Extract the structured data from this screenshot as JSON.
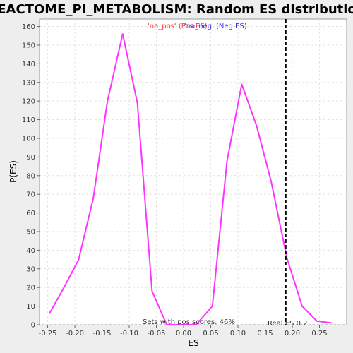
{
  "chart_data": {
    "type": "line",
    "title": "REACTOME_PI_METABOLISM: Random ES distribution",
    "xlabel": "ES",
    "ylabel": "P(ES)",
    "xlim": [
      -0.265,
      0.3
    ],
    "ylim": [
      0,
      164
    ],
    "x_ticks": [
      "-0.25",
      "-0.20",
      "-0.15",
      "-0.10",
      "-0.05",
      "0.00",
      "0.05",
      "0.10",
      "0.15",
      "0.20",
      "0.25"
    ],
    "x_tick_values": [
      -0.25,
      -0.2,
      -0.15,
      -0.1,
      -0.05,
      0.0,
      0.05,
      0.1,
      0.15,
      0.2,
      0.25
    ],
    "y_ticks": [
      "0",
      "10",
      "20",
      "30",
      "40",
      "50",
      "60",
      "70",
      "80",
      "90",
      "100",
      "110",
      "120",
      "130",
      "140",
      "150",
      "160"
    ],
    "y_tick_values": [
      0,
      10,
      20,
      30,
      40,
      50,
      60,
      70,
      80,
      90,
      100,
      110,
      120,
      130,
      140,
      150,
      160
    ],
    "grid": true,
    "legend": {
      "position": "top-center",
      "entries": [
        {
          "label": "'na_pos' (Pos ES)",
          "color": "#ff3333"
        },
        {
          "label": "'na_neg' (Neg ES)",
          "color": "#3333ff"
        }
      ]
    },
    "series": [
      {
        "color": "#ff33ff",
        "x": [
          -0.247,
          -0.22,
          -0.193,
          -0.166,
          -0.14,
          -0.112,
          -0.085,
          -0.058,
          -0.031,
          -0.004,
          0.023,
          0.053,
          0.08,
          0.107,
          0.134,
          0.161,
          0.19,
          0.218,
          0.245,
          0.272
        ],
        "y": [
          6,
          20,
          35,
          68,
          120,
          156,
          119,
          18,
          0,
          0,
          0,
          10,
          88,
          129,
          107,
          77,
          36,
          10,
          2,
          1
        ]
      }
    ],
    "real_es": {
      "value": 0.188,
      "label": "Real ES 0.2"
    },
    "annotation": "Sets with pos scores: 46%"
  }
}
